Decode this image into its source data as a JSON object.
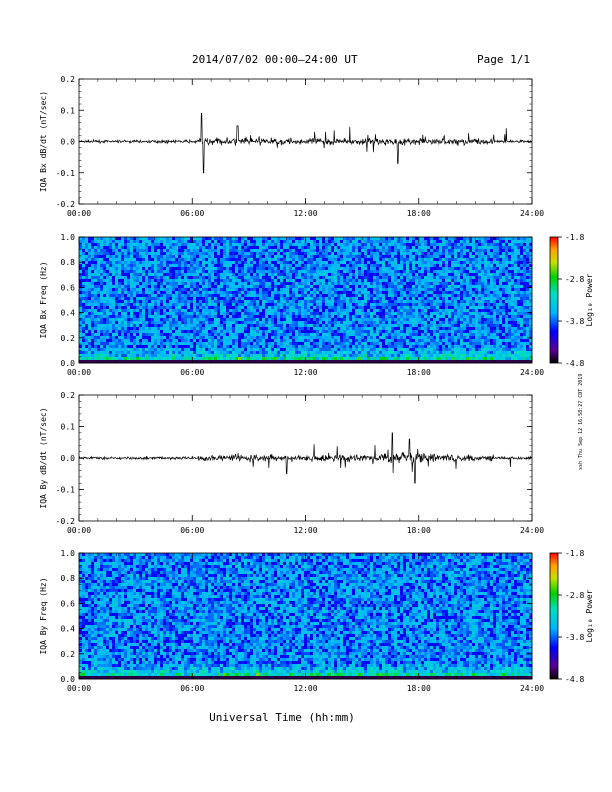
{
  "header": {
    "date_range": "2014/07/02  00:00–24:00 UT",
    "page": "Page 1/1"
  },
  "side_note": "ssh Thu Sep 12 16:58:27 CDT 2019",
  "xlabel": "Universal Time (hh:mm)",
  "chart_data": [
    {
      "type": "line",
      "ylabel": "IQA Bx dB/dt (nT/sec)",
      "xlim": [
        0,
        24
      ],
      "ylim": [
        -0.2,
        0.2
      ],
      "xticks": [
        "00:00",
        "06:00",
        "12:00",
        "18:00",
        "24:00"
      ],
      "yticks": [
        "-0.2",
        "-0.1",
        "0.0",
        "0.1",
        "0.2"
      ],
      "events": [
        {
          "t": 6.5,
          "y": 0.09
        },
        {
          "t": 6.6,
          "y": -0.1
        },
        {
          "t": 8.4,
          "y": 0.05
        },
        {
          "t": 16.9,
          "y": -0.07
        }
      ]
    },
    {
      "type": "heatmap",
      "ylabel": "IQA Bx Freq (Hz)",
      "xlim": [
        0,
        24
      ],
      "ylim": [
        0,
        1
      ],
      "xticks": [
        "00:00",
        "06:00",
        "12:00",
        "18:00",
        "24:00"
      ],
      "yticks": [
        "0.0",
        "0.2",
        "0.4",
        "0.6",
        "0.8",
        "1.0"
      ],
      "colorbar": {
        "label": "Log₁₀ Power",
        "ticks": [
          "-1.8",
          "-2.8",
          "-3.8",
          "-4.8"
        ],
        "range": [
          -4.8,
          -1.8
        ]
      }
    },
    {
      "type": "line",
      "ylabel": "IQA By dB/dt (nT/sec)",
      "xlim": [
        0,
        24
      ],
      "ylim": [
        -0.2,
        0.2
      ],
      "xticks": [
        "00:00",
        "06:00",
        "12:00",
        "18:00",
        "24:00"
      ],
      "yticks": [
        "-0.2",
        "-0.1",
        "0.0",
        "0.1",
        "0.2"
      ],
      "events": [
        {
          "t": 16.6,
          "y": 0.08
        },
        {
          "t": 17.5,
          "y": 0.06
        },
        {
          "t": 17.8,
          "y": -0.08
        },
        {
          "t": 11.0,
          "y": -0.05
        }
      ]
    },
    {
      "type": "heatmap",
      "ylabel": "IQA By Freq (Hz)",
      "xlim": [
        0,
        24
      ],
      "ylim": [
        0,
        1
      ],
      "xticks": [
        "00:00",
        "06:00",
        "12:00",
        "18:00",
        "24:00"
      ],
      "yticks": [
        "0.0",
        "0.2",
        "0.4",
        "0.6",
        "0.8",
        "1.0"
      ],
      "colorbar": {
        "label": "Log₁₀ Power",
        "ticks": [
          "-1.8",
          "-2.8",
          "-3.8",
          "-4.8"
        ],
        "range": [
          -4.8,
          -1.8
        ]
      }
    }
  ]
}
